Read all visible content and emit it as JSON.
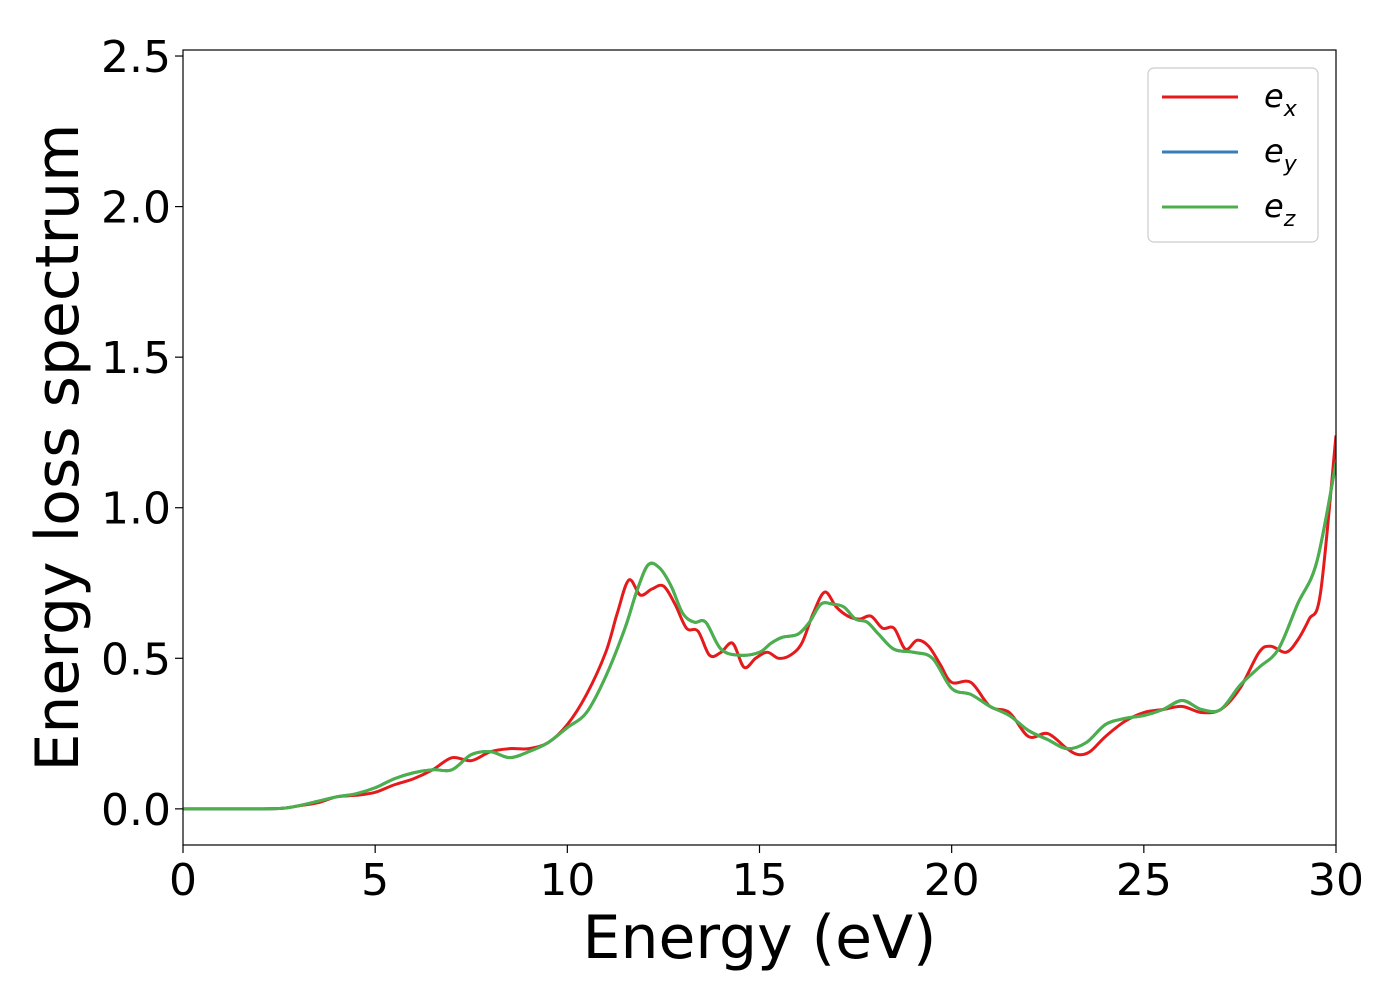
{
  "chart_data": {
    "type": "line",
    "title": "",
    "xlabel": "Energy (eV)",
    "ylabel": "Energy loss spectrum",
    "xlim": [
      0,
      30
    ],
    "ylim": [
      -0.12,
      2.52
    ],
    "xticks": [
      0,
      5,
      10,
      15,
      20,
      25,
      30
    ],
    "xtick_labels": [
      "0",
      "5",
      "10",
      "15",
      "20",
      "25",
      "30"
    ],
    "yticks": [
      0.0,
      0.5,
      1.0,
      1.5,
      2.0,
      2.5
    ],
    "ytick_labels": [
      "0.0",
      "0.5",
      "1.0",
      "1.5",
      "2.0",
      "2.5"
    ],
    "grid": false,
    "legend_position": "top-right",
    "series": [
      {
        "name": "e_x",
        "label_base": "e",
        "label_sub": "x",
        "color": "#e41a1c",
        "x": [
          0,
          1,
          2,
          2.6,
          3,
          3.5,
          4,
          4.5,
          5,
          5.5,
          6,
          6.5,
          7,
          7.5,
          8,
          8.5,
          9,
          9.5,
          10,
          10.5,
          11,
          11.3,
          11.6,
          11.9,
          12.2,
          12.5,
          12.8,
          13.1,
          13.4,
          13.7,
          14,
          14.3,
          14.6,
          14.9,
          15.2,
          15.5,
          15.8,
          16.1,
          16.4,
          16.7,
          17,
          17.3,
          17.6,
          17.9,
          18.2,
          18.5,
          18.8,
          19.1,
          19.4,
          19.7,
          20,
          20.5,
          21,
          21.5,
          22,
          22.5,
          23,
          23.3,
          23.6,
          24,
          24.5,
          25,
          25.5,
          26,
          26.5,
          27,
          27.5,
          28,
          28.3,
          28.7,
          29,
          29.3,
          29.6,
          30
        ],
        "y": [
          0.0,
          0.0,
          0.0,
          0.002,
          0.01,
          0.02,
          0.04,
          0.045,
          0.055,
          0.08,
          0.1,
          0.13,
          0.17,
          0.16,
          0.19,
          0.2,
          0.2,
          0.22,
          0.28,
          0.38,
          0.52,
          0.65,
          0.76,
          0.71,
          0.73,
          0.74,
          0.68,
          0.6,
          0.59,
          0.51,
          0.52,
          0.55,
          0.47,
          0.5,
          0.52,
          0.5,
          0.51,
          0.55,
          0.65,
          0.72,
          0.67,
          0.64,
          0.63,
          0.64,
          0.6,
          0.6,
          0.53,
          0.56,
          0.54,
          0.48,
          0.42,
          0.42,
          0.34,
          0.32,
          0.24,
          0.25,
          0.2,
          0.18,
          0.19,
          0.24,
          0.29,
          0.32,
          0.33,
          0.34,
          0.32,
          0.33,
          0.4,
          0.52,
          0.54,
          0.52,
          0.56,
          0.63,
          0.72,
          1.24
        ]
      },
      {
        "name": "e_y",
        "label_base": "e",
        "label_sub": "y",
        "color": "#377eb8",
        "x": [
          0,
          1,
          2,
          2.6,
          3,
          3.5,
          4,
          4.5,
          5,
          5.5,
          6,
          6.5,
          7,
          7.5,
          8,
          8.5,
          9,
          9.5,
          10,
          10.5,
          11,
          11.5,
          11.8,
          12.1,
          12.4,
          12.7,
          13,
          13.3,
          13.6,
          14,
          14.5,
          15,
          15.3,
          15.6,
          16,
          16.3,
          16.6,
          16.9,
          17.2,
          17.5,
          17.8,
          18.1,
          18.5,
          19,
          19.5,
          20,
          20.5,
          21,
          21.5,
          22,
          22.5,
          23,
          23.5,
          24,
          24.5,
          25,
          25.5,
          26,
          26.5,
          27,
          27.5,
          28,
          28.5,
          29,
          29.5,
          30
        ],
        "y": [
          0.0,
          0.0,
          0.0,
          0.002,
          0.01,
          0.025,
          0.04,
          0.05,
          0.07,
          0.1,
          0.12,
          0.13,
          0.13,
          0.18,
          0.19,
          0.17,
          0.19,
          0.22,
          0.27,
          0.32,
          0.44,
          0.6,
          0.72,
          0.81,
          0.8,
          0.74,
          0.65,
          0.62,
          0.62,
          0.53,
          0.51,
          0.52,
          0.55,
          0.57,
          0.58,
          0.62,
          0.68,
          0.68,
          0.67,
          0.63,
          0.62,
          0.58,
          0.53,
          0.52,
          0.5,
          0.4,
          0.38,
          0.34,
          0.31,
          0.26,
          0.23,
          0.2,
          0.22,
          0.28,
          0.3,
          0.31,
          0.33,
          0.36,
          0.33,
          0.33,
          0.41,
          0.47,
          0.53,
          0.68,
          0.82,
          1.15
        ]
      },
      {
        "name": "e_z",
        "label_base": "e",
        "label_sub": "z",
        "color": "#4daf4a",
        "x": [
          0,
          1,
          2,
          2.6,
          3,
          3.5,
          4,
          4.5,
          5,
          5.5,
          6,
          6.5,
          7,
          7.5,
          8,
          8.5,
          9,
          9.5,
          10,
          10.5,
          11,
          11.5,
          11.8,
          12.1,
          12.4,
          12.7,
          13,
          13.3,
          13.6,
          14,
          14.5,
          15,
          15.3,
          15.6,
          16,
          16.3,
          16.6,
          16.9,
          17.2,
          17.5,
          17.8,
          18.1,
          18.5,
          19,
          19.5,
          20,
          20.5,
          21,
          21.5,
          22,
          22.5,
          23,
          23.5,
          24,
          24.5,
          25,
          25.5,
          26,
          26.5,
          27,
          27.5,
          28,
          28.5,
          29,
          29.5,
          30
        ],
        "y": [
          0.0,
          0.0,
          0.0,
          0.002,
          0.01,
          0.025,
          0.04,
          0.05,
          0.07,
          0.1,
          0.12,
          0.13,
          0.13,
          0.18,
          0.19,
          0.17,
          0.19,
          0.22,
          0.27,
          0.32,
          0.44,
          0.6,
          0.72,
          0.81,
          0.8,
          0.74,
          0.65,
          0.62,
          0.62,
          0.53,
          0.51,
          0.52,
          0.55,
          0.57,
          0.58,
          0.62,
          0.68,
          0.68,
          0.67,
          0.63,
          0.62,
          0.58,
          0.53,
          0.52,
          0.5,
          0.4,
          0.38,
          0.34,
          0.31,
          0.26,
          0.23,
          0.2,
          0.22,
          0.28,
          0.3,
          0.31,
          0.33,
          0.36,
          0.33,
          0.33,
          0.41,
          0.47,
          0.53,
          0.68,
          0.82,
          1.15
        ]
      }
    ]
  }
}
